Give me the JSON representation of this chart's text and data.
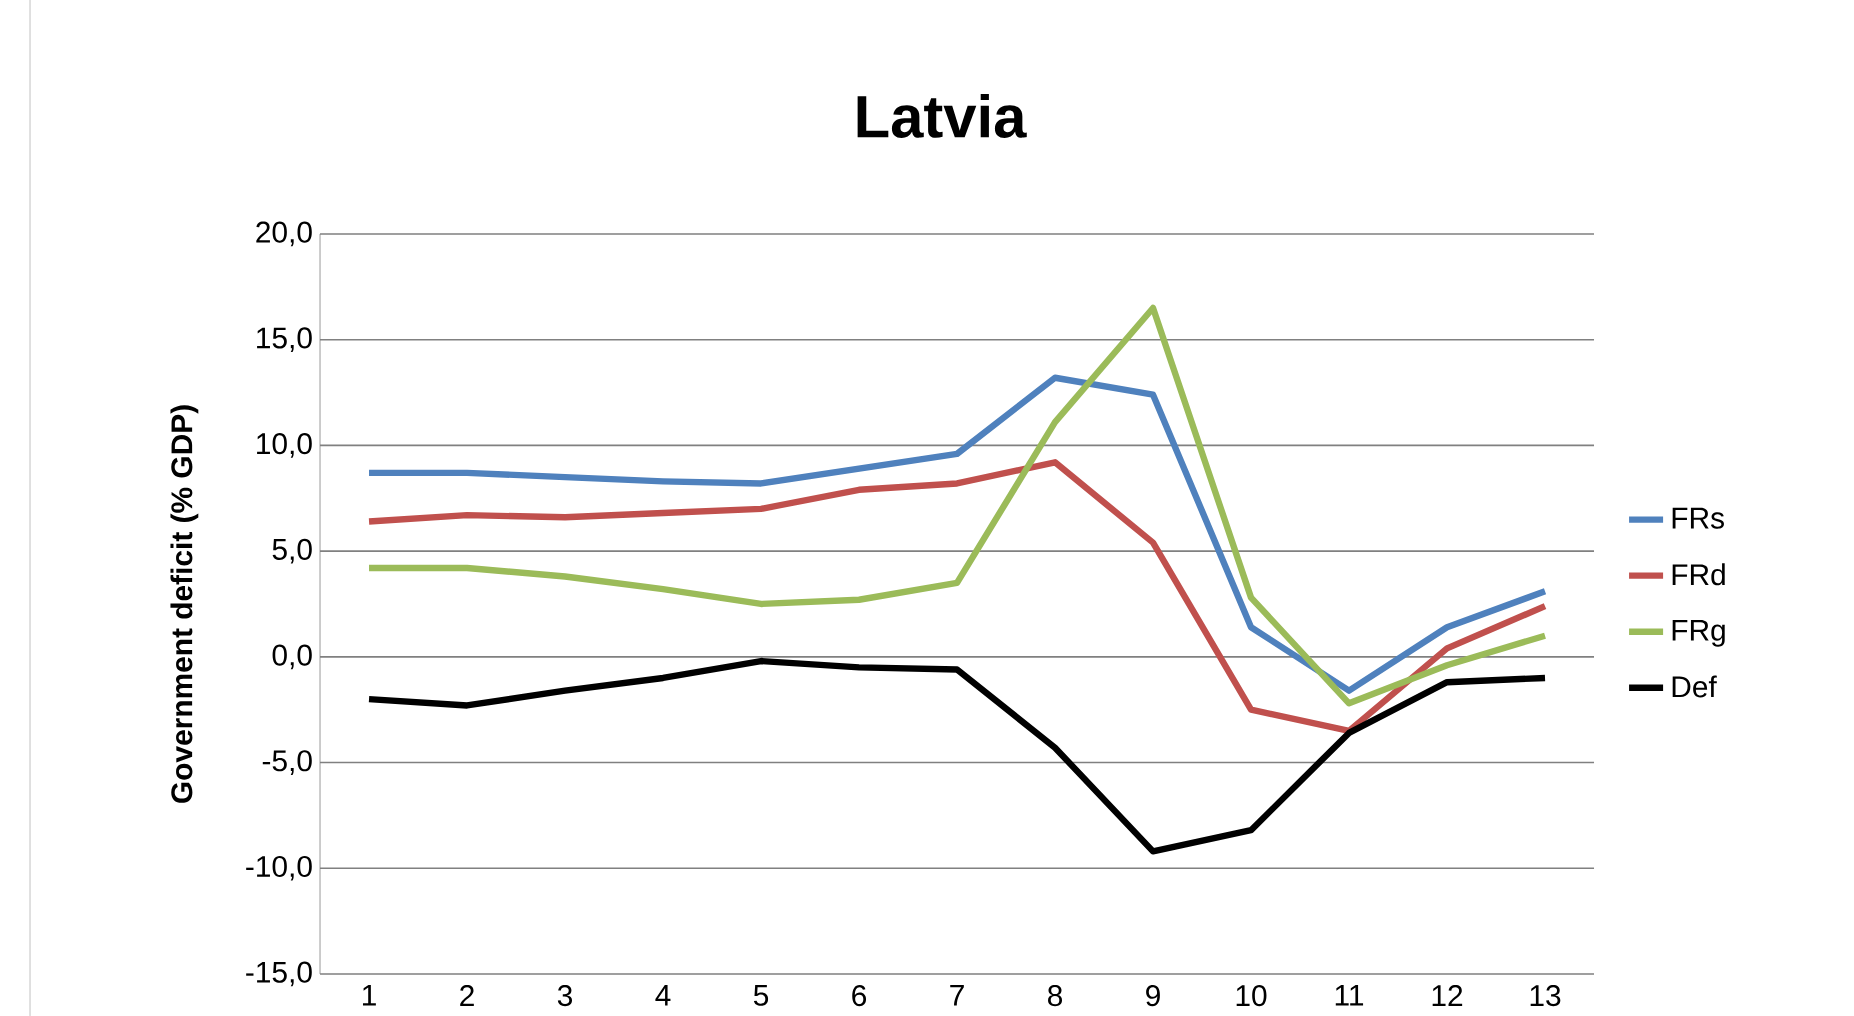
{
  "chart_data": {
    "type": "line",
    "title": "Latvia",
    "ylabel": "Government deficit (% GDP)",
    "categories": [
      "1",
      "2",
      "3",
      "4",
      "5",
      "6",
      "7",
      "8",
      "9",
      "10",
      "11",
      "12",
      "13"
    ],
    "series": [
      {
        "name": "FRs",
        "color": "#4f81bd",
        "values": [
          8.7,
          8.7,
          8.5,
          8.3,
          8.2,
          8.9,
          9.6,
          13.2,
          12.4,
          1.4,
          -1.6,
          1.4,
          3.1
        ]
      },
      {
        "name": "FRd",
        "color": "#c0504d",
        "values": [
          6.4,
          6.7,
          6.6,
          6.8,
          7.0,
          7.9,
          8.2,
          9.2,
          5.4,
          -2.5,
          -3.5,
          0.4,
          2.4
        ]
      },
      {
        "name": "FRg",
        "color": "#9bbb59",
        "values": [
          4.2,
          4.2,
          3.8,
          3.2,
          2.5,
          2.7,
          3.5,
          11.1,
          16.5,
          2.8,
          -2.2,
          -0.4,
          1.0
        ]
      },
      {
        "name": "Def",
        "color": "#000000",
        "values": [
          -2.0,
          -2.3,
          -1.6,
          -1.0,
          -0.2,
          -0.5,
          -0.6,
          -4.3,
          -9.2,
          -8.2,
          -3.6,
          -1.2,
          -1.0
        ]
      }
    ],
    "ylim": [
      -15,
      20
    ],
    "yticks": [
      {
        "value": -15,
        "label": "-15,0"
      },
      {
        "value": -10,
        "label": "-10,0"
      },
      {
        "value": -5,
        "label": "-5,0"
      },
      {
        "value": 0,
        "label": "0,0"
      },
      {
        "value": 5,
        "label": "5,0"
      },
      {
        "value": 10,
        "label": "10,0"
      },
      {
        "value": 15,
        "label": "15,0"
      },
      {
        "value": 20,
        "label": "20,0"
      }
    ],
    "grid": "y",
    "legend": "right",
    "marker": "none",
    "line_style": "solid"
  }
}
